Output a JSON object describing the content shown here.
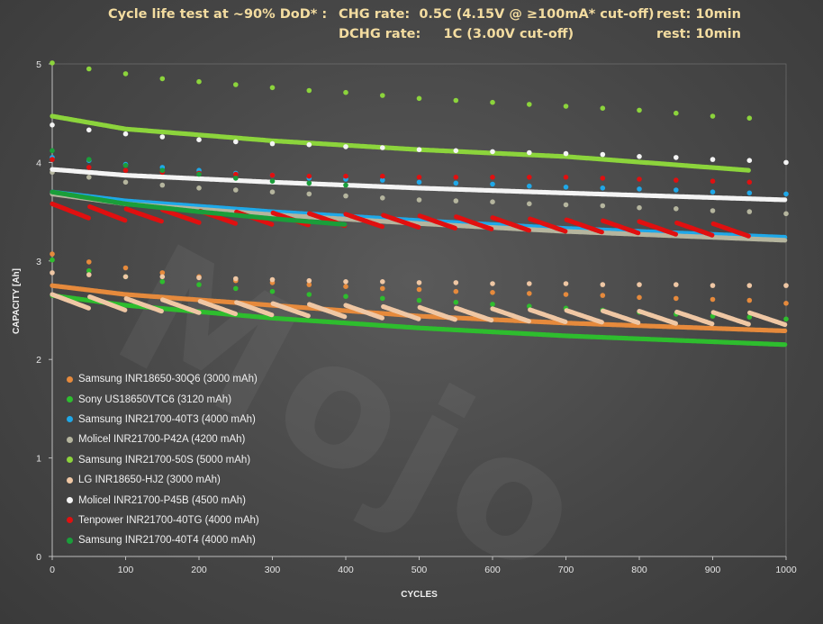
{
  "title": {
    "line1": {
      "left": "Cycle life test at ~90% DoD* :",
      "chg": "CHG rate:  0.5C (4.15V @ ≥100mA* cut-off)",
      "rest": "rest: 10min"
    },
    "line2": {
      "dchg": "DCHG rate:     1C (3.00V cut-off)",
      "rest": "rest: 10min"
    }
  },
  "watermark": "Mojo",
  "chart_data": {
    "type": "scatter",
    "xlabel": "CYCLES",
    "ylabel": "CAPACITY [Ah]",
    "xlim": [
      0,
      1000
    ],
    "ylim": [
      0,
      5
    ],
    "xticks": [
      "0",
      "100",
      "200",
      "300",
      "400",
      "500",
      "600",
      "700",
      "800",
      "900",
      "1000"
    ],
    "yticks": [
      "0",
      "1",
      "2",
      "3",
      "4",
      "5"
    ],
    "legend_position": "lower-left",
    "series": [
      {
        "name": "Samsung INR18650-30Q6 (3000 mAh)",
        "color": "#e68a3c",
        "range": [
          0,
          1000
        ],
        "trend": [
          [
            0,
            2.75
          ],
          [
            100,
            2.66
          ],
          [
            300,
            2.55
          ],
          [
            500,
            2.44
          ],
          [
            700,
            2.37
          ],
          [
            1000,
            2.29
          ]
        ],
        "checkups": [
          [
            0,
            3.07
          ],
          [
            50,
            2.99
          ],
          [
            100,
            2.93
          ],
          [
            150,
            2.88
          ],
          [
            200,
            2.84
          ],
          [
            250,
            2.8
          ],
          [
            300,
            2.78
          ],
          [
            350,
            2.76
          ],
          [
            400,
            2.74
          ],
          [
            450,
            2.72
          ],
          [
            500,
            2.71
          ],
          [
            550,
            2.69
          ],
          [
            600,
            2.68
          ],
          [
            650,
            2.67
          ],
          [
            700,
            2.66
          ],
          [
            750,
            2.65
          ],
          [
            800,
            2.63
          ],
          [
            850,
            2.62
          ],
          [
            900,
            2.61
          ],
          [
            950,
            2.6
          ],
          [
            1000,
            2.57
          ]
        ]
      },
      {
        "name": "Sony US18650VTC6 (3120 mAh)",
        "color": "#2ebd2e",
        "range": [
          0,
          1000
        ],
        "trend": [
          [
            0,
            2.65
          ],
          [
            100,
            2.55
          ],
          [
            300,
            2.42
          ],
          [
            500,
            2.32
          ],
          [
            700,
            2.24
          ],
          [
            1000,
            2.15
          ]
        ],
        "checkups": [
          [
            0,
            3.01
          ],
          [
            50,
            2.9
          ],
          [
            100,
            2.84
          ],
          [
            150,
            2.79
          ],
          [
            200,
            2.76
          ],
          [
            250,
            2.72
          ],
          [
            300,
            2.69
          ],
          [
            350,
            2.66
          ],
          [
            400,
            2.64
          ],
          [
            450,
            2.62
          ],
          [
            500,
            2.6
          ],
          [
            550,
            2.58
          ],
          [
            600,
            2.56
          ],
          [
            650,
            2.54
          ],
          [
            700,
            2.52
          ],
          [
            750,
            2.5
          ],
          [
            800,
            2.48
          ],
          [
            850,
            2.46
          ],
          [
            900,
            2.44
          ],
          [
            950,
            2.43
          ],
          [
            1000,
            2.41
          ]
        ]
      },
      {
        "name": "Samsung INR21700-40T3 (4000 mAh)",
        "color": "#1fa8e8",
        "range": [
          0,
          1000
        ],
        "trend": [
          [
            0,
            3.7
          ],
          [
            100,
            3.61
          ],
          [
            300,
            3.5
          ],
          [
            500,
            3.41
          ],
          [
            700,
            3.33
          ],
          [
            1000,
            3.24
          ]
        ],
        "checkups": [
          [
            0,
            4.05
          ],
          [
            50,
            4.02
          ],
          [
            100,
            3.98
          ],
          [
            150,
            3.95
          ],
          [
            200,
            3.92
          ],
          [
            250,
            3.89
          ],
          [
            300,
            3.87
          ],
          [
            350,
            3.84
          ],
          [
            400,
            3.83
          ],
          [
            450,
            3.82
          ],
          [
            500,
            3.8
          ],
          [
            550,
            3.79
          ],
          [
            600,
            3.78
          ],
          [
            650,
            3.76
          ],
          [
            700,
            3.75
          ],
          [
            750,
            3.74
          ],
          [
            800,
            3.73
          ],
          [
            850,
            3.72
          ],
          [
            900,
            3.7
          ],
          [
            950,
            3.69
          ],
          [
            1000,
            3.68
          ]
        ]
      },
      {
        "name": "Molicel INR21700-P42A (4200 mAh)",
        "color": "#b5b59e",
        "range": [
          0,
          1000
        ],
        "trend": [
          [
            0,
            3.68
          ],
          [
            100,
            3.58
          ],
          [
            300,
            3.47
          ],
          [
            500,
            3.38
          ],
          [
            700,
            3.3
          ],
          [
            1000,
            3.21
          ]
        ],
        "checkups": [
          [
            0,
            3.9
          ],
          [
            50,
            3.85
          ],
          [
            100,
            3.8
          ],
          [
            150,
            3.77
          ],
          [
            200,
            3.74
          ],
          [
            250,
            3.72
          ],
          [
            300,
            3.7
          ],
          [
            350,
            3.68
          ],
          [
            400,
            3.66
          ],
          [
            450,
            3.64
          ],
          [
            500,
            3.62
          ],
          [
            550,
            3.61
          ],
          [
            600,
            3.6
          ],
          [
            650,
            3.58
          ],
          [
            700,
            3.57
          ],
          [
            750,
            3.56
          ],
          [
            800,
            3.54
          ],
          [
            850,
            3.53
          ],
          [
            900,
            3.51
          ],
          [
            950,
            3.5
          ],
          [
            1000,
            3.48
          ]
        ]
      },
      {
        "name": "Samsung INR21700-50S (5000 mAh)",
        "color": "#8cd43c",
        "range": [
          0,
          950
        ],
        "trend": [
          [
            0,
            4.47
          ],
          [
            100,
            4.34
          ],
          [
            300,
            4.22
          ],
          [
            500,
            4.13
          ],
          [
            700,
            4.06
          ],
          [
            950,
            3.92
          ]
        ],
        "checkups": [
          [
            0,
            5.01
          ],
          [
            50,
            4.95
          ],
          [
            100,
            4.9
          ],
          [
            150,
            4.85
          ],
          [
            200,
            4.82
          ],
          [
            250,
            4.79
          ],
          [
            300,
            4.76
          ],
          [
            350,
            4.73
          ],
          [
            400,
            4.71
          ],
          [
            450,
            4.68
          ],
          [
            500,
            4.65
          ],
          [
            550,
            4.63
          ],
          [
            600,
            4.61
          ],
          [
            650,
            4.59
          ],
          [
            700,
            4.57
          ],
          [
            750,
            4.55
          ],
          [
            800,
            4.53
          ],
          [
            850,
            4.5
          ],
          [
            900,
            4.47
          ],
          [
            950,
            4.45
          ]
        ]
      },
      {
        "name": "LG INR18650-HJ2 (3000 mAh)",
        "color": "#efc7a4",
        "range": [
          0,
          1000
        ],
        "sawtooth": true,
        "trend": [
          [
            0,
            2.6
          ],
          [
            100,
            2.56
          ],
          [
            300,
            2.51
          ],
          [
            500,
            2.47
          ],
          [
            700,
            2.44
          ],
          [
            1000,
            2.41
          ]
        ],
        "checkups": [
          [
            0,
            2.88
          ],
          [
            50,
            2.86
          ],
          [
            100,
            2.84
          ],
          [
            150,
            2.84
          ],
          [
            200,
            2.83
          ],
          [
            250,
            2.82
          ],
          [
            300,
            2.81
          ],
          [
            350,
            2.8
          ],
          [
            400,
            2.79
          ],
          [
            450,
            2.79
          ],
          [
            500,
            2.78
          ],
          [
            550,
            2.78
          ],
          [
            600,
            2.77
          ],
          [
            650,
            2.77
          ],
          [
            700,
            2.77
          ],
          [
            750,
            2.76
          ],
          [
            800,
            2.76
          ],
          [
            850,
            2.76
          ],
          [
            900,
            2.75
          ],
          [
            950,
            2.75
          ],
          [
            1000,
            2.75
          ]
        ]
      },
      {
        "name": "Molicel INR21700-P45B (4500 mAh)",
        "color": "#f4f4f4",
        "range": [
          0,
          1000
        ],
        "trend": [
          [
            0,
            3.93
          ],
          [
            100,
            3.87
          ],
          [
            300,
            3.8
          ],
          [
            500,
            3.74
          ],
          [
            700,
            3.69
          ],
          [
            1000,
            3.62
          ]
        ],
        "checkups": [
          [
            0,
            4.38
          ],
          [
            50,
            4.33
          ],
          [
            100,
            4.29
          ],
          [
            150,
            4.26
          ],
          [
            200,
            4.23
          ],
          [
            250,
            4.21
          ],
          [
            300,
            4.19
          ],
          [
            350,
            4.18
          ],
          [
            400,
            4.16
          ],
          [
            450,
            4.15
          ],
          [
            500,
            4.13
          ],
          [
            550,
            4.12
          ],
          [
            600,
            4.11
          ],
          [
            650,
            4.1
          ],
          [
            700,
            4.09
          ],
          [
            750,
            4.08
          ],
          [
            800,
            4.06
          ],
          [
            850,
            4.05
          ],
          [
            900,
            4.03
          ],
          [
            950,
            4.02
          ],
          [
            1000,
            4.0
          ]
        ]
      },
      {
        "name": "Tenpower INR21700-40TG (4000 mAh)",
        "color": "#e01010",
        "range": [
          0,
          950
        ],
        "sawtooth": true,
        "trend": [
          [
            0,
            3.52
          ],
          [
            100,
            3.47
          ],
          [
            300,
            3.43
          ],
          [
            500,
            3.4
          ],
          [
            700,
            3.36
          ],
          [
            950,
            3.31
          ]
        ],
        "checkups": [
          [
            0,
            4.03
          ],
          [
            50,
            3.95
          ],
          [
            100,
            3.92
          ],
          [
            150,
            3.9
          ],
          [
            200,
            3.89
          ],
          [
            250,
            3.88
          ],
          [
            300,
            3.87
          ],
          [
            350,
            3.86
          ],
          [
            400,
            3.86
          ],
          [
            450,
            3.86
          ],
          [
            500,
            3.85
          ],
          [
            550,
            3.85
          ],
          [
            600,
            3.85
          ],
          [
            650,
            3.85
          ],
          [
            700,
            3.85
          ],
          [
            750,
            3.84
          ],
          [
            800,
            3.83
          ],
          [
            850,
            3.82
          ],
          [
            900,
            3.81
          ],
          [
            950,
            3.8
          ]
        ]
      },
      {
        "name": "Samsung INR21700-40T4 (4000 mAh)",
        "color": "#1a9e3a",
        "range": [
          0,
          400
        ],
        "trend": [
          [
            0,
            3.7
          ],
          [
            100,
            3.58
          ],
          [
            200,
            3.5
          ],
          [
            300,
            3.43
          ],
          [
            400,
            3.37
          ]
        ],
        "checkups": [
          [
            0,
            4.12
          ],
          [
            50,
            4.03
          ],
          [
            100,
            3.97
          ],
          [
            150,
            3.92
          ],
          [
            200,
            3.88
          ],
          [
            250,
            3.84
          ],
          [
            300,
            3.81
          ],
          [
            350,
            3.79
          ],
          [
            400,
            3.77
          ]
        ]
      }
    ]
  }
}
